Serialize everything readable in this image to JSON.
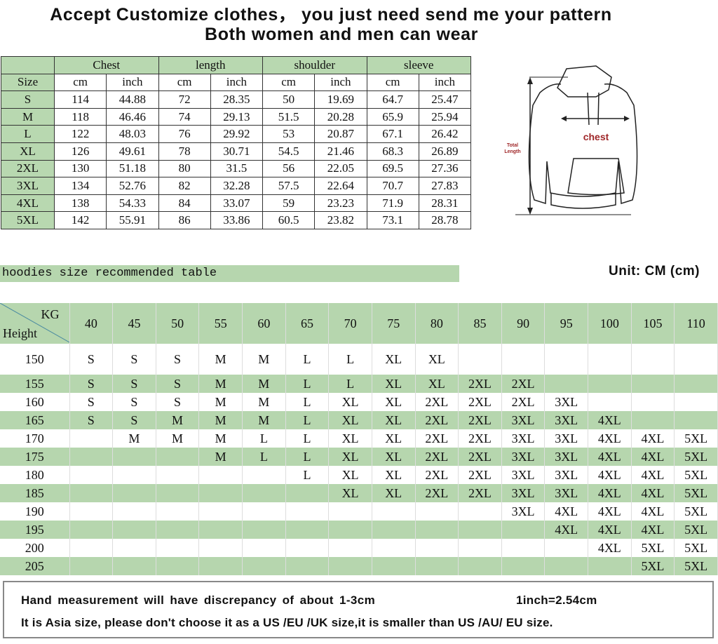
{
  "header": {
    "line1": "Accept Customize clothes， you just need send me your pattern",
    "line2": "Both women and men can wear"
  },
  "size_table": {
    "groups": [
      "Chest",
      "length",
      "shoulder",
      "sleeve"
    ],
    "size_label": "Size",
    "units": [
      "cm",
      "inch",
      "cm",
      "inch",
      "cm",
      "inch",
      "cm",
      "inch"
    ],
    "rows": [
      [
        "S",
        "114",
        "44.88",
        "72",
        "28.35",
        "50",
        "19.69",
        "64.7",
        "25.47"
      ],
      [
        "M",
        "118",
        "46.46",
        "74",
        "29.13",
        "51.5",
        "20.28",
        "65.9",
        "25.94"
      ],
      [
        "L",
        "122",
        "48.03",
        "76",
        "29.92",
        "53",
        "20.87",
        "67.1",
        "26.42"
      ],
      [
        "XL",
        "126",
        "49.61",
        "78",
        "30.71",
        "54.5",
        "21.46",
        "68.3",
        "26.89"
      ],
      [
        "2XL",
        "130",
        "51.18",
        "80",
        "31.5",
        "56",
        "22.05",
        "69.5",
        "27.36"
      ],
      [
        "3XL",
        "134",
        "52.76",
        "82",
        "32.28",
        "57.5",
        "22.64",
        "70.7",
        "27.83"
      ],
      [
        "4XL",
        "138",
        "54.33",
        "84",
        "33.07",
        "59",
        "23.23",
        "71.9",
        "28.31"
      ],
      [
        "5XL",
        "142",
        "55.91",
        "86",
        "33.86",
        "60.5",
        "23.82",
        "73.1",
        "28.78"
      ]
    ]
  },
  "diagram": {
    "chest_label": "chest",
    "length_label_1": "Total",
    "length_label_2": "Length",
    "accent": "#a0282a"
  },
  "recommend": {
    "banner": "hoodies size recommended table",
    "unit": "Unit: CM (cm)",
    "corner_kg": "KG",
    "corner_height": "Height",
    "weights": [
      "40",
      "45",
      "50",
      "55",
      "60",
      "65",
      "70",
      "75",
      "80",
      "85",
      "90",
      "95",
      "100",
      "105",
      "110"
    ],
    "rows": [
      {
        "height": "150",
        "sizes": [
          "S",
          "S",
          "S",
          "M",
          "M",
          "L",
          "L",
          "XL",
          "XL",
          "",
          "",
          "",
          "",
          "",
          ""
        ]
      },
      {
        "height": "155",
        "sizes": [
          "S",
          "S",
          "S",
          "M",
          "M",
          "L",
          "L",
          "XL",
          "XL",
          "2XL",
          "2XL",
          "",
          "",
          "",
          ""
        ]
      },
      {
        "height": "160",
        "sizes": [
          "S",
          "S",
          "S",
          "M",
          "M",
          "L",
          "XL",
          "XL",
          "2XL",
          "2XL",
          "2XL",
          "3XL",
          "",
          "",
          ""
        ]
      },
      {
        "height": "165",
        "sizes": [
          "S",
          "S",
          "M",
          "M",
          "M",
          "L",
          "XL",
          "XL",
          "2XL",
          "2XL",
          "3XL",
          "3XL",
          "4XL",
          "",
          ""
        ]
      },
      {
        "height": "170",
        "sizes": [
          "",
          "M",
          "M",
          "M",
          "L",
          "L",
          "XL",
          "XL",
          "2XL",
          "2XL",
          "3XL",
          "3XL",
          "4XL",
          "4XL",
          "5XL"
        ]
      },
      {
        "height": "175",
        "sizes": [
          "",
          "",
          "",
          "M",
          "L",
          "L",
          "XL",
          "XL",
          "2XL",
          "2XL",
          "3XL",
          "3XL",
          "4XL",
          "4XL",
          "5XL"
        ]
      },
      {
        "height": "180",
        "sizes": [
          "",
          "",
          "",
          "",
          "",
          "L",
          "XL",
          "XL",
          "2XL",
          "2XL",
          "3XL",
          "3XL",
          "4XL",
          "4XL",
          "5XL"
        ]
      },
      {
        "height": "185",
        "sizes": [
          "",
          "",
          "",
          "",
          "",
          "",
          "XL",
          "XL",
          "2XL",
          "2XL",
          "3XL",
          "3XL",
          "4XL",
          "4XL",
          "5XL"
        ]
      },
      {
        "height": "190",
        "sizes": [
          "",
          "",
          "",
          "",
          "",
          "",
          "",
          "",
          "",
          "",
          "3XL",
          "4XL",
          "4XL",
          "4XL",
          "5XL"
        ]
      },
      {
        "height": "195",
        "sizes": [
          "",
          "",
          "",
          "",
          "",
          "",
          "",
          "",
          "",
          "",
          "",
          "4XL",
          "4XL",
          "4XL",
          "5XL"
        ]
      },
      {
        "height": "200",
        "sizes": [
          "",
          "",
          "",
          "",
          "",
          "",
          "",
          "",
          "",
          "",
          "",
          "",
          "4XL",
          "5XL",
          "5XL"
        ]
      },
      {
        "height": "205",
        "sizes": [
          "",
          "",
          "",
          "",
          "",
          "",
          "",
          "",
          "",
          "",
          "",
          "",
          "",
          "5XL",
          "5XL"
        ]
      }
    ]
  },
  "note": {
    "line1": "Hand measurement will have discrepancy of about 1-3cm",
    "line1b": "1inch=2.54cm",
    "line2": "It is Asia size, please don't choose it as a US /EU /UK size,it is smaller than US /AU/ EU size."
  },
  "colors": {
    "green": "#b6d6ae",
    "text": "#111111"
  }
}
